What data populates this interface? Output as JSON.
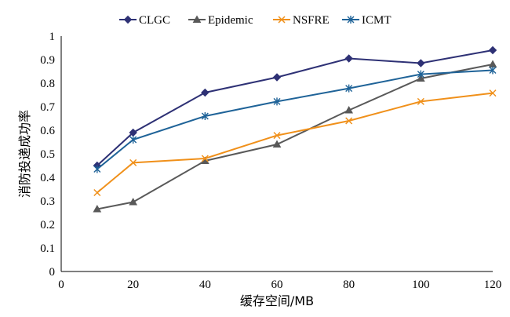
{
  "chart_data": {
    "type": "line",
    "title": "",
    "xlabel": "缓存空间/MB",
    "ylabel": "消防投递成功率",
    "xlim": [
      0,
      120
    ],
    "ylim": [
      0,
      1
    ],
    "x_ticks": [
      0,
      20,
      40,
      60,
      80,
      100,
      120
    ],
    "y_ticks": [
      0,
      0.1,
      0.2,
      0.3,
      0.4,
      0.5,
      0.6,
      0.7,
      0.8,
      0.9,
      1
    ],
    "x_tick_labels": [
      "0",
      "20",
      "40",
      "60",
      "80",
      "100",
      "120"
    ],
    "y_tick_labels": [
      "0",
      "0.1",
      "0.2",
      "0.3",
      "0.4",
      "0.5",
      "0.6",
      "0.7",
      "0.8",
      "0.9",
      "1"
    ],
    "grid": false,
    "legend_position": "top",
    "x": [
      10,
      20,
      40,
      60,
      80,
      100,
      120
    ],
    "series": [
      {
        "name": "CLGC",
        "color": "#2e3175",
        "marker": "diamond",
        "values": [
          0.45,
          0.59,
          0.76,
          0.825,
          0.905,
          0.885,
          0.94
        ]
      },
      {
        "name": "Epidemic",
        "color": "#595959",
        "marker": "triangle",
        "values": [
          0.265,
          0.295,
          0.47,
          0.54,
          0.685,
          0.82,
          0.88
        ]
      },
      {
        "name": "NSFRE",
        "color": "#f0901a",
        "marker": "x",
        "values": [
          0.335,
          0.462,
          0.48,
          0.578,
          0.64,
          0.722,
          0.758
        ]
      },
      {
        "name": "ICMT",
        "color": "#1f6398",
        "marker": "star",
        "values": [
          0.435,
          0.56,
          0.66,
          0.722,
          0.778,
          0.838,
          0.855
        ]
      }
    ]
  }
}
